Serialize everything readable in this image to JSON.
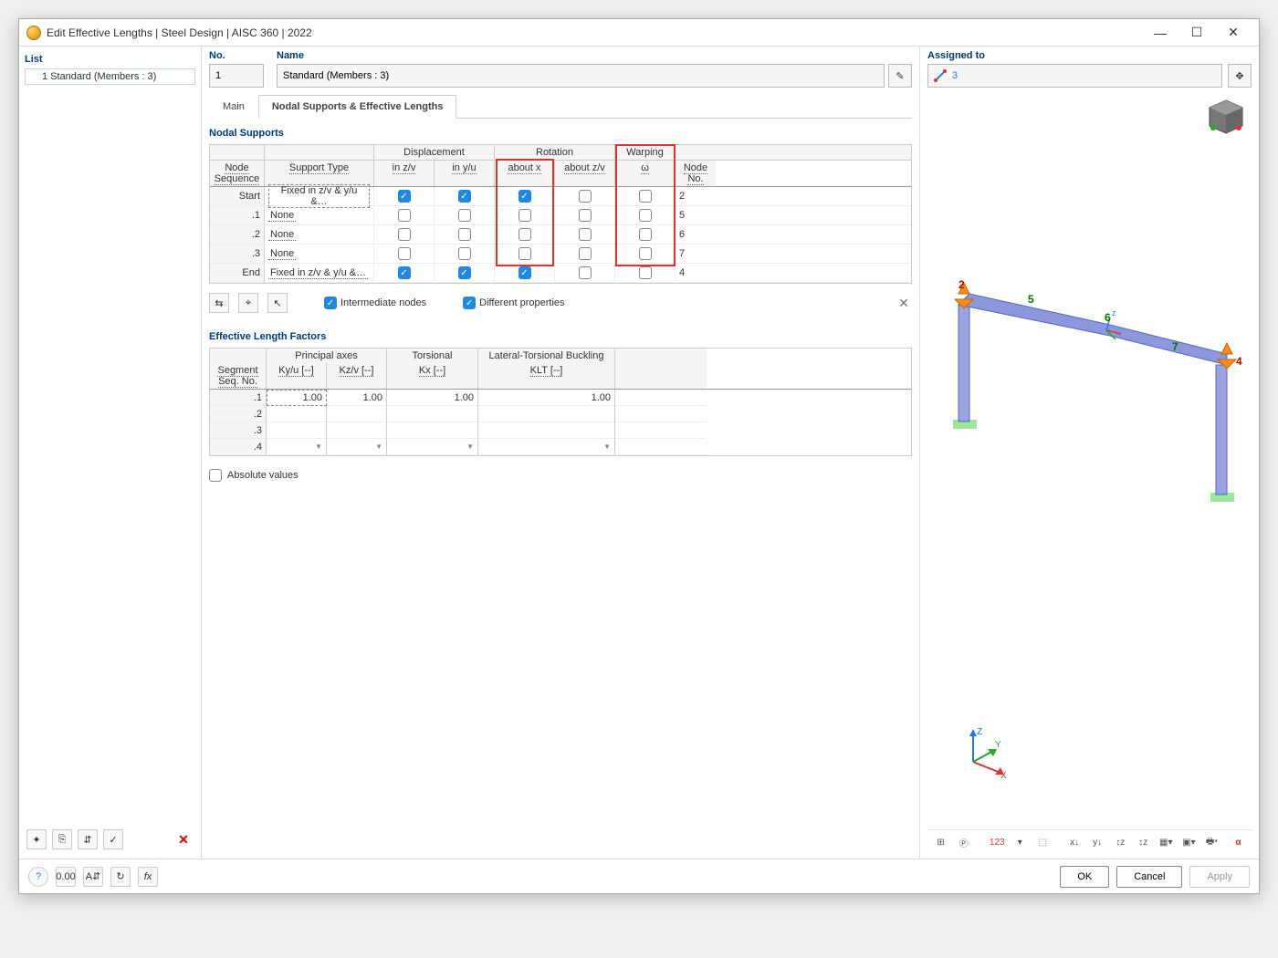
{
  "window": {
    "title": "Edit Effective Lengths | Steel Design | AISC 360 | 2022"
  },
  "left": {
    "label": "List",
    "item": "1 Standard (Members : 3)"
  },
  "header": {
    "no_label": "No.",
    "no_value": "1",
    "name_label": "Name",
    "name_value": "Standard (Members : 3)"
  },
  "tabs": {
    "main": "Main",
    "nodal": "Nodal Supports & Effective Lengths"
  },
  "nodal_supports": {
    "title": "Nodal Supports",
    "head": {
      "seq": "Node Sequence",
      "type": "Support Type",
      "disp": "Displacement",
      "zv": "in z/v",
      "yu": "in y/u",
      "rot": "Rotation",
      "ax": "about x",
      "azv": "about z/v",
      "warp": "Warping",
      "omega": "ω",
      "node_no": "Node No."
    },
    "rows": [
      {
        "seq": "Start",
        "type": "Fixed in z/v & y/u &…",
        "zv": true,
        "yu": true,
        "ax": true,
        "azv": false,
        "w": false,
        "no": "2"
      },
      {
        "seq": ".1",
        "type": "None",
        "zv": false,
        "yu": false,
        "ax": false,
        "azv": false,
        "w": false,
        "no": "5"
      },
      {
        "seq": ".2",
        "type": "None",
        "zv": false,
        "yu": false,
        "ax": false,
        "azv": false,
        "w": false,
        "no": "6"
      },
      {
        "seq": ".3",
        "type": "None",
        "zv": false,
        "yu": false,
        "ax": false,
        "azv": false,
        "w": false,
        "no": "7"
      },
      {
        "seq": "End",
        "type": "Fixed in z/v & y/u &…",
        "zv": true,
        "yu": true,
        "ax": true,
        "azv": false,
        "w": false,
        "no": "4"
      }
    ],
    "intermediate": "Intermediate nodes",
    "different": "Different properties"
  },
  "eff": {
    "title": "Effective Length Factors",
    "head": {
      "seg": "Segment Seq. No.",
      "prin": "Principal axes",
      "ky": "Ky/u [--]",
      "kz": "Kz/v [--]",
      "tor": "Torsional",
      "kx": "Kx [--]",
      "ltb": "Lateral-Torsional Buckling",
      "klt": "KLT [--]"
    },
    "rows": [
      {
        "seg": ".1",
        "ky": "1.00",
        "kz": "1.00",
        "kx": "1.00",
        "klt": "1.00"
      },
      {
        "seg": ".2",
        "ky": "",
        "kz": "",
        "kx": "",
        "klt": ""
      },
      {
        "seg": ".3",
        "ky": "",
        "kz": "",
        "kx": "",
        "klt": ""
      },
      {
        "seg": ".4",
        "ky": "",
        "kz": "",
        "kx": "",
        "klt": ""
      }
    ],
    "absolute": "Absolute values"
  },
  "right": {
    "label": "Assigned to",
    "value": "3",
    "nodes": {
      "n2": "2",
      "n4": "4",
      "n5": "5",
      "n6": "6",
      "n7": "7"
    },
    "axes": {
      "x": "X",
      "y": "Y",
      "z": "Z"
    }
  },
  "buttons": {
    "ok": "OK",
    "cancel": "Cancel",
    "apply": "Apply"
  },
  "colors": {
    "link": "#2b7de9",
    "accent": "#1e88e5",
    "red": "#e03030",
    "green": "#2fa84f"
  }
}
